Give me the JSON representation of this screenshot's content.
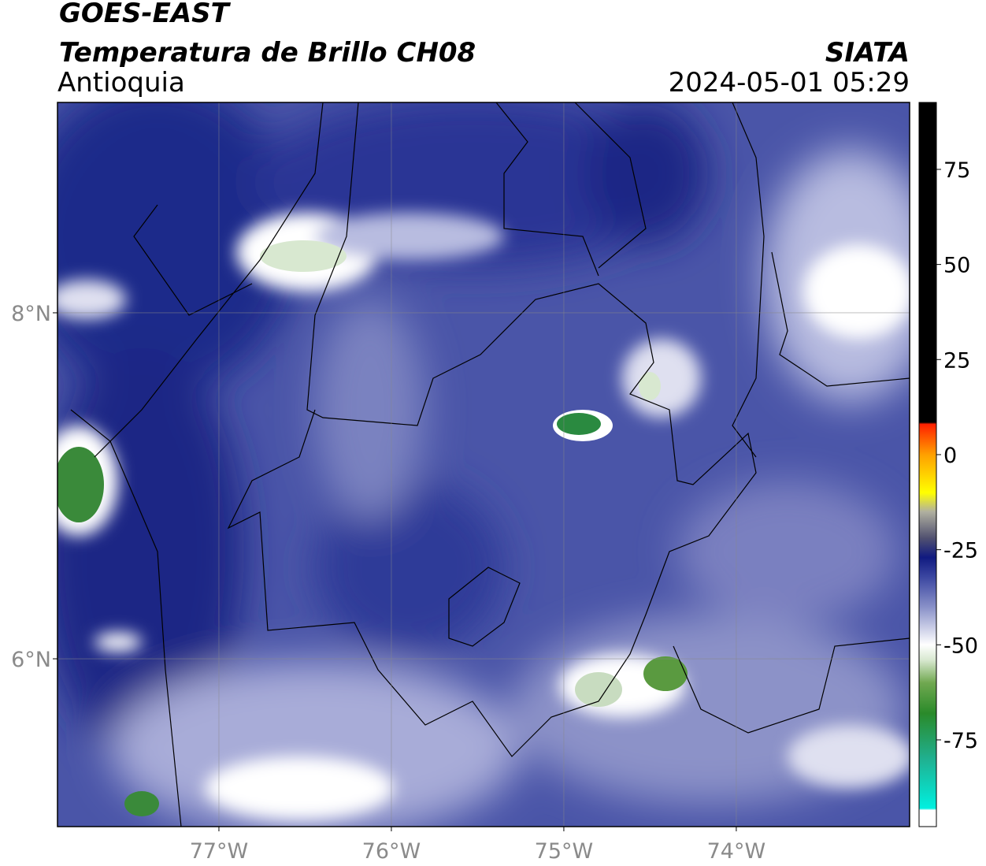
{
  "header": {
    "title": "GOES-EAST",
    "subtitle": "Temperatura de Brillo CH08",
    "region": "Antioquia",
    "source": "SIATA",
    "timestamp": "2024-05-01 05:29"
  },
  "map": {
    "xlim": [
      -77.936,
      -72.995
    ],
    "ylim": [
      5.03,
      9.216
    ],
    "xticks": [
      {
        "value": -77,
        "label": "77°W"
      },
      {
        "value": -76,
        "label": "76°W"
      },
      {
        "value": -75,
        "label": "75°W"
      },
      {
        "value": -74,
        "label": "74°W"
      }
    ],
    "yticks": [
      {
        "value": 6,
        "label": "6°N"
      },
      {
        "value": 8,
        "label": "8°N"
      }
    ],
    "grid": true
  },
  "colorbar": {
    "lim": [
      -97.8,
      92.6
    ],
    "ticks": [
      75,
      50,
      25,
      0,
      -25,
      -50,
      -75
    ],
    "colormap": [
      {
        "value": -97.8,
        "color": "#ffffff"
      },
      {
        "value": -93.5,
        "color": "#ffffff"
      },
      {
        "value": -93,
        "color": "#00f0e0"
      },
      {
        "value": -80,
        "color": "#20b090"
      },
      {
        "value": -68,
        "color": "#2a8a2a"
      },
      {
        "value": -60,
        "color": "#70a850"
      },
      {
        "value": -54,
        "color": "#d8e8d0"
      },
      {
        "value": -50,
        "color": "#ffffff"
      },
      {
        "value": -40,
        "color": "#8890c8"
      },
      {
        "value": -32,
        "color": "#3a45a0"
      },
      {
        "value": -27,
        "color": "#101a80"
      },
      {
        "value": -22,
        "color": "#505070"
      },
      {
        "value": -15,
        "color": "#b0b0a0"
      },
      {
        "value": -10,
        "color": "#ffff00"
      },
      {
        "value": 0,
        "color": "#ffa000"
      },
      {
        "value": 8,
        "color": "#ff2000"
      },
      {
        "value": 8.5,
        "color": "#000000"
      },
      {
        "value": 92.6,
        "color": "#000000"
      }
    ]
  }
}
